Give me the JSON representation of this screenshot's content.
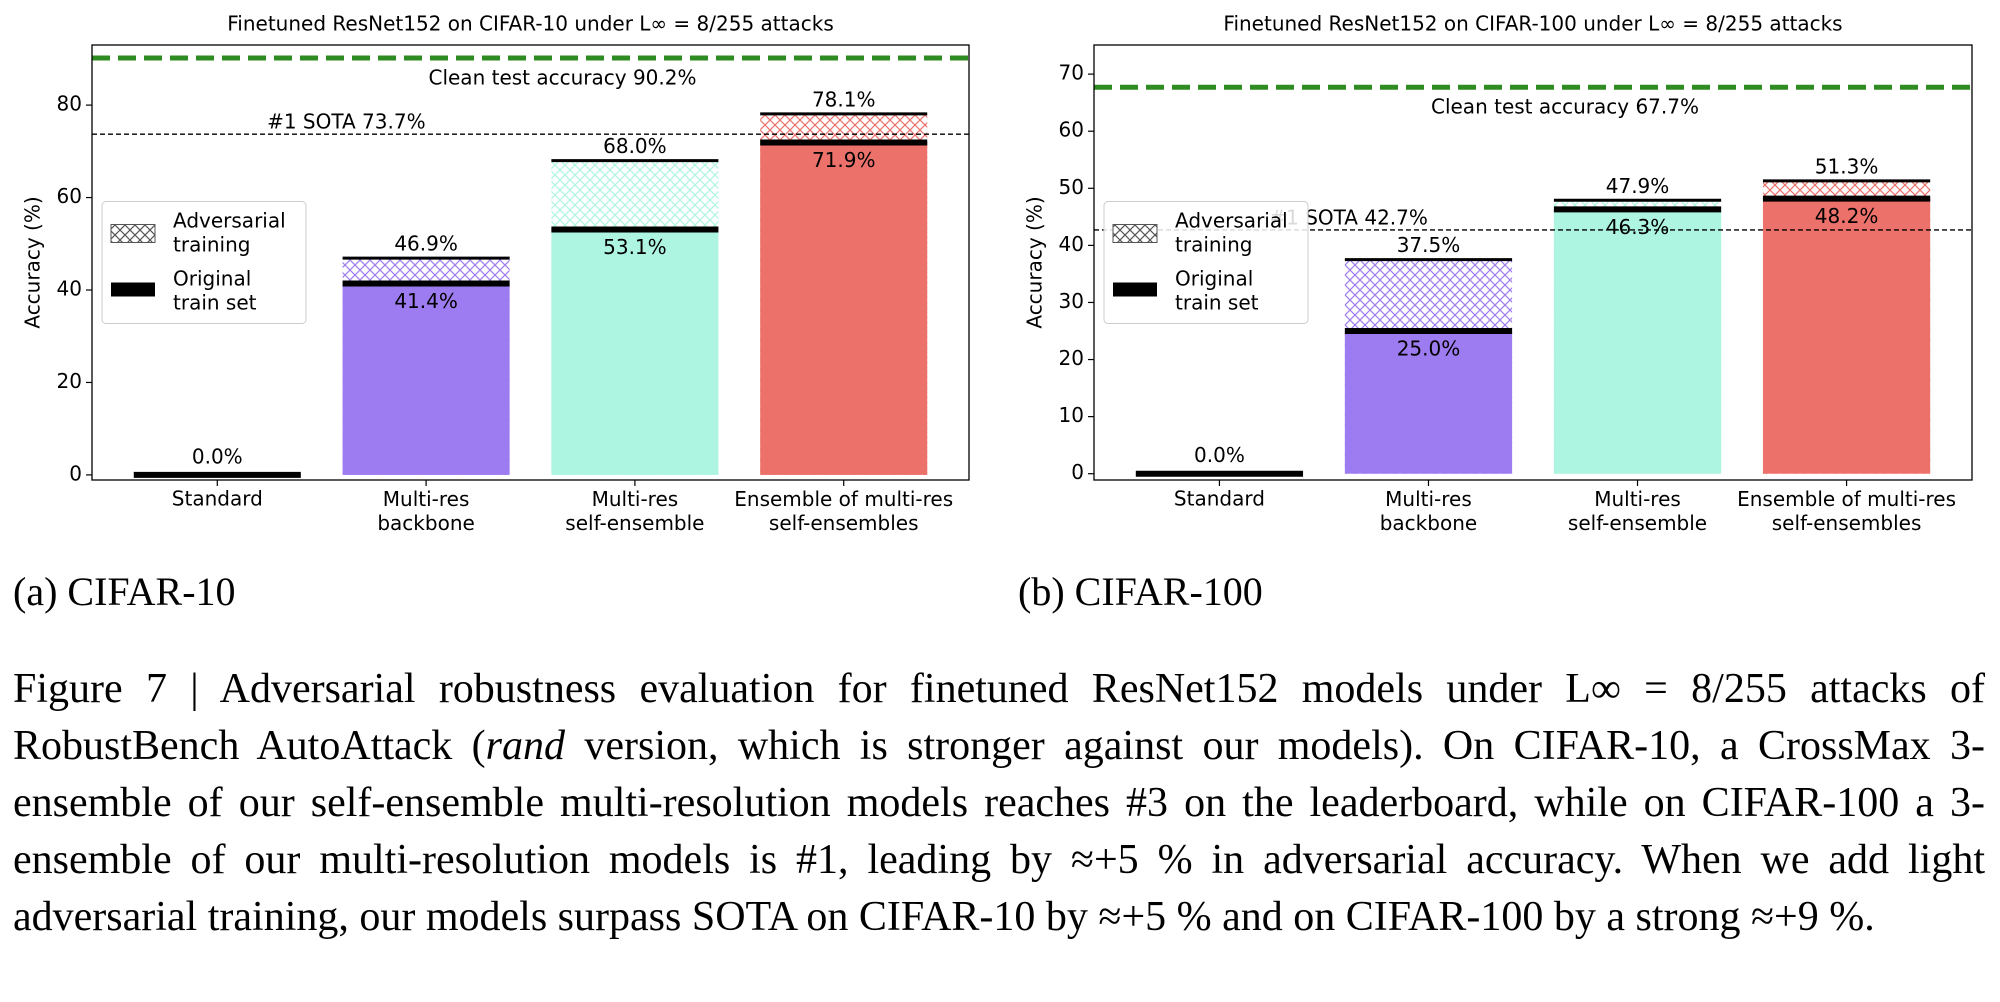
{
  "chart_data": [
    {
      "type": "bar",
      "title": "Finetuned ResNet152 on CIFAR-10 under L∞ = 8/255 attacks",
      "y_label": "Accuracy (%)",
      "categories": [
        "Standard",
        "Multi-res backbone",
        "Multi-res self-ensemble",
        "Ensemble of multi-res self-ensembles"
      ],
      "category_colors": [
        "#000000",
        "#9d7bf0",
        "#aef5e1",
        "#ec716a"
      ],
      "series": [
        {
          "name": "Adversarial training",
          "style": "hatch",
          "values": [
            null,
            46.9,
            68.0,
            78.1
          ],
          "value_labels": [
            null,
            "46.9%",
            "68.0%",
            "78.1%"
          ]
        },
        {
          "name": "Original train set",
          "style": "solid",
          "values": [
            0.0,
            41.4,
            53.1,
            71.9
          ],
          "value_labels": [
            "0.0%",
            "41.4%",
            "53.1%",
            "71.9%"
          ]
        }
      ],
      "reference_lines": [
        {
          "value": 90.2,
          "label": "Clean test accuracy 90.2%",
          "color": "#2e8b22",
          "style": "thick"
        },
        {
          "value": 73.7,
          "label": "#1 SOTA 73.7%",
          "color": "#000000",
          "style": "thin"
        }
      ],
      "ylim": [
        -1.1,
        93
      ],
      "yticks": [
        0,
        20,
        40,
        60,
        80
      ],
      "legend": "center left"
    },
    {
      "type": "bar",
      "title": "Finetuned ResNet152 on CIFAR-100 under L∞ = 8/255 attacks",
      "y_label": "Accuracy (%)",
      "categories": [
        "Standard",
        "Multi-res backbone",
        "Multi-res self-ensemble",
        "Ensemble of multi-res self-ensembles"
      ],
      "category_colors": [
        "#000000",
        "#9d7bf0",
        "#aef5e1",
        "#ec716a"
      ],
      "series": [
        {
          "name": "Adversarial training",
          "style": "hatch",
          "values": [
            null,
            37.5,
            47.9,
            51.3
          ],
          "value_labels": [
            null,
            "37.5%",
            "47.9%",
            "51.3%"
          ]
        },
        {
          "name": "Original train set",
          "style": "solid",
          "values": [
            0.0,
            25.0,
            46.3,
            48.2
          ],
          "value_labels": [
            "0.0%",
            "25.0%",
            "46.3%",
            "48.2%"
          ]
        }
      ],
      "reference_lines": [
        {
          "value": 67.7,
          "label": "Clean test accuracy 67.7%",
          "color": "#2e8b22",
          "style": "thick"
        },
        {
          "value": 42.7,
          "label": "#1 SOTA 42.7%",
          "color": "#000000",
          "style": "thin"
        }
      ],
      "ylim": [
        -1.1,
        75.1
      ],
      "yticks": [
        0,
        10,
        20,
        30,
        40,
        50,
        60,
        70
      ],
      "legend": "center left"
    }
  ],
  "subcaptions": [
    "(a) CIFAR-10",
    "(b) CIFAR-100"
  ],
  "caption": [
    "Figure 7 | Adversarial robustness evaluation for finetuned ResNet152 models under L∞ = 8/255 attacks of RobustBench AutoAttack (",
    "rand",
    " version, which is stronger against our models). On CIFAR-10, a CrossMax 3-ensemble of our self-ensemble multi-resolution models reaches #3 on the leaderboard, while on CIFAR-100 a 3-ensemble of our multi-resolution models is #1, leading by ≈+5 % in adversarial accuracy. When we add light adversarial training, our models surpass SOTA on CIFAR-10 by ≈+5 % and on CIFAR-100 by a strong ≈+9 %."
  ]
}
